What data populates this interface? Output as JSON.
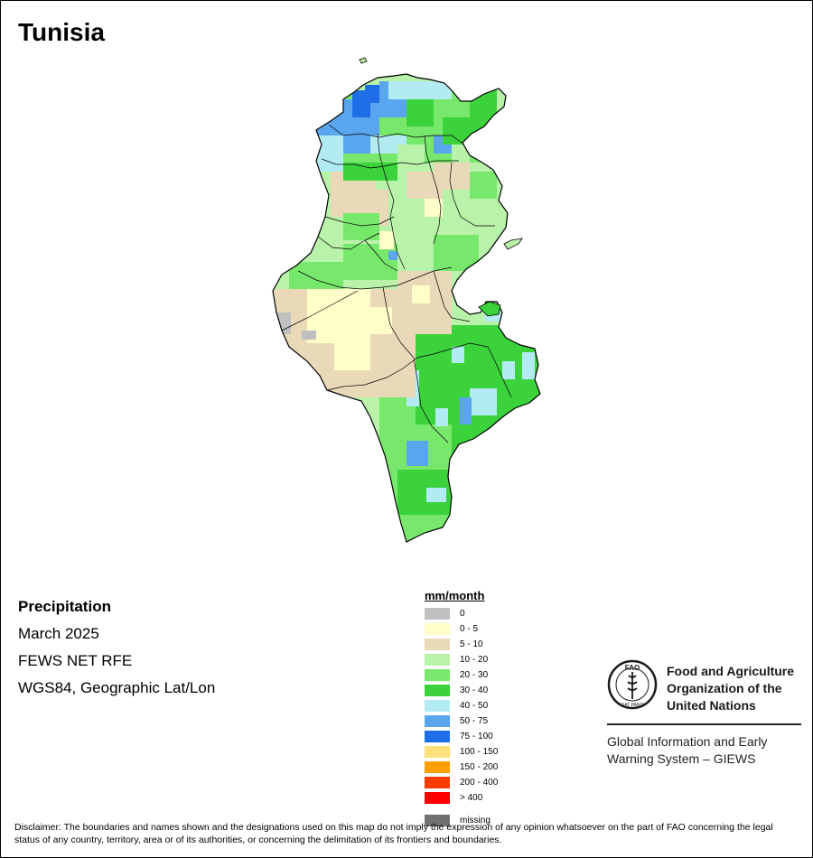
{
  "title": "Tunisia",
  "info": {
    "variable": "Precipitation",
    "period": "March 2025",
    "source": "FEWS NET RFE",
    "projection": "WGS84, Geographic Lat/Lon"
  },
  "legend": {
    "title": "mm/month",
    "classes": [
      {
        "label": "0",
        "color": "#c0c0c0"
      },
      {
        "label": "0 - 5",
        "color": "#fffdc8"
      },
      {
        "label": "5 - 10",
        "color": "#ead9b8"
      },
      {
        "label": "10 - 20",
        "color": "#b9f2a9"
      },
      {
        "label": "20 - 30",
        "color": "#78e86d"
      },
      {
        "label": "30 - 40",
        "color": "#3cd23c"
      },
      {
        "label": "40 - 50",
        "color": "#b2ecf2"
      },
      {
        "label": "50 - 75",
        "color": "#5aa6ee"
      },
      {
        "label": "75 - 100",
        "color": "#1f6ee8"
      },
      {
        "label": "100 - 150",
        "color": "#ffe07a"
      },
      {
        "label": "150 - 200",
        "color": "#ff9e00"
      },
      {
        "label": "200 - 400",
        "color": "#ff3c00"
      },
      {
        "label": "> 400",
        "color": "#ff0000"
      }
    ],
    "missing": {
      "label": "missing",
      "color": "#707070"
    }
  },
  "branding": {
    "org_name": "Food and Agriculture\nOrganization of the\nUnited Nations",
    "program": "Global Information and Early\nWarning System – GIEWS",
    "logo_letters": "FAO",
    "logo_motto": "FIAT PANIS"
  },
  "disclaimer": "Disclaimer: The boundaries and names shown and the designations used on this map do not imply the expression of any opinion whatsoever on the part of FAO concerning the legal status of any country, territory, area or of its authorities, or concerning the delimitation of its frontiers and boundaries."
}
